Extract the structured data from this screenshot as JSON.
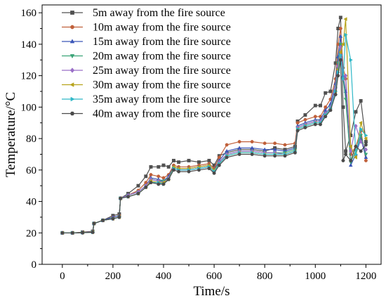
{
  "chart_data": {
    "type": "line",
    "xlabel": "Time/s",
    "ylabel": "Temperature/°C",
    "xlim": [
      -80,
      1260
    ],
    "ylim": [
      0,
      165
    ],
    "xticks": [
      0,
      200,
      400,
      600,
      800,
      1000,
      1200
    ],
    "yticks": [
      0,
      20,
      40,
      60,
      80,
      100,
      120,
      140,
      160
    ],
    "grid": false,
    "legend_position": "top-left",
    "series": [
      {
        "name": "5m away from the fire source",
        "color": "#505050",
        "marker": "square",
        "x": [
          0,
          40,
          80,
          120,
          125,
          160,
          200,
          225,
          230,
          260,
          300,
          330,
          350,
          380,
          400,
          420,
          440,
          460,
          500,
          540,
          580,
          600,
          620,
          650,
          700,
          750,
          800,
          840,
          880,
          920,
          930,
          960,
          1000,
          1020,
          1040,
          1060,
          1080,
          1090,
          1100,
          1110,
          1120,
          1140,
          1160,
          1180,
          1200
        ],
        "y": [
          20,
          20,
          20.5,
          21,
          26,
          28,
          31,
          32,
          42,
          45,
          50,
          56,
          62,
          62,
          63,
          62,
          66,
          65,
          66,
          65,
          66,
          63,
          69,
          71,
          73,
          73,
          72,
          74,
          73,
          75,
          91,
          95,
          101,
          101,
          109,
          110,
          128,
          150,
          157,
          100,
          72,
          82,
          97,
          104,
          78
        ]
      },
      {
        "name": "10m away from the fire source",
        "color": "#c0603a",
        "marker": "circle",
        "x": [
          0,
          40,
          80,
          120,
          125,
          160,
          200,
          225,
          230,
          260,
          300,
          330,
          350,
          380,
          400,
          420,
          440,
          460,
          500,
          540,
          580,
          600,
          620,
          650,
          700,
          750,
          800,
          840,
          880,
          920,
          930,
          960,
          1000,
          1020,
          1040,
          1060,
          1080,
          1090,
          1100,
          1110,
          1120,
          1140,
          1160,
          1180,
          1200
        ],
        "y": [
          20,
          20,
          20.3,
          20.8,
          26,
          28,
          30,
          31,
          42,
          44,
          47,
          52,
          57,
          56,
          55,
          57,
          63,
          62,
          62,
          63,
          64,
          61,
          68,
          76,
          78,
          78,
          77,
          77,
          76,
          77,
          90,
          92,
          94,
          94,
          100,
          105,
          118,
          140,
          150,
          125,
          118,
          70,
          75,
          85,
          66
        ]
      },
      {
        "name": "15m away from the fire source",
        "color": "#3a56b8",
        "marker": "triangle-up",
        "x": [
          0,
          40,
          80,
          120,
          125,
          160,
          200,
          225,
          230,
          260,
          300,
          330,
          350,
          380,
          400,
          420,
          440,
          460,
          500,
          540,
          580,
          600,
          620,
          650,
          700,
          750,
          800,
          840,
          880,
          920,
          930,
          960,
          1000,
          1020,
          1040,
          1060,
          1080,
          1090,
          1100,
          1110,
          1120,
          1140,
          1160,
          1180,
          1200
        ],
        "y": [
          20,
          20,
          20.2,
          20.6,
          26,
          28,
          30,
          31,
          42,
          44,
          46,
          50,
          55,
          54,
          53,
          56,
          62,
          61,
          61,
          62,
          63,
          60,
          66,
          72,
          74,
          74,
          73,
          73,
          72,
          74,
          88,
          90,
          92,
          92,
          98,
          102,
          115,
          132,
          145,
          120,
          110,
          63,
          70,
          80,
          68
        ]
      },
      {
        "name": "20m away from the fire source",
        "color": "#3aa377",
        "marker": "triangle-down",
        "x": [
          0,
          40,
          80,
          120,
          125,
          160,
          200,
          225,
          230,
          260,
          300,
          330,
          350,
          380,
          400,
          420,
          440,
          460,
          500,
          540,
          580,
          600,
          620,
          650,
          700,
          750,
          800,
          840,
          880,
          920,
          930,
          960,
          1000,
          1020,
          1040,
          1060,
          1080,
          1090,
          1100,
          1110,
          1120,
          1140,
          1160,
          1180,
          1200
        ],
        "y": [
          20,
          20,
          20.1,
          20.5,
          26,
          28,
          29,
          30,
          42,
          44,
          46,
          50,
          54,
          53,
          53,
          55,
          61,
          60,
          60,
          61,
          62,
          59,
          65,
          70,
          72,
          72,
          71,
          71,
          71,
          73,
          87,
          89,
          91,
          91,
          96,
          100,
          112,
          128,
          140,
          118,
          105,
          65,
          72,
          82,
          70
        ]
      },
      {
        "name": "25m away from the fire source",
        "color": "#9a6fc8",
        "marker": "diamond",
        "x": [
          0,
          40,
          80,
          120,
          125,
          160,
          200,
          225,
          230,
          260,
          300,
          330,
          350,
          380,
          400,
          420,
          440,
          460,
          500,
          540,
          580,
          600,
          620,
          650,
          700,
          750,
          800,
          840,
          880,
          920,
          930,
          960,
          1000,
          1020,
          1040,
          1060,
          1080,
          1090,
          1100,
          1110,
          1120,
          1140,
          1160,
          1180,
          1200
        ],
        "y": [
          20,
          20,
          20.1,
          20.5,
          26,
          28,
          29,
          30,
          42,
          44,
          46,
          50,
          54,
          53,
          52,
          55,
          61,
          60,
          60,
          61,
          62,
          59,
          65,
          70,
          72,
          72,
          71,
          71,
          70,
          72,
          87,
          89,
          91,
          91,
          96,
          100,
          112,
          126,
          138,
          118,
          120,
          72,
          88,
          78,
          73
        ]
      },
      {
        "name": "30m away from the fire source",
        "color": "#b7a31b",
        "marker": "triangle-left",
        "x": [
          0,
          40,
          80,
          120,
          125,
          160,
          200,
          225,
          230,
          260,
          300,
          330,
          350,
          380,
          400,
          420,
          440,
          460,
          500,
          540,
          580,
          600,
          620,
          650,
          700,
          750,
          800,
          840,
          880,
          920,
          930,
          960,
          1000,
          1020,
          1040,
          1060,
          1080,
          1090,
          1100,
          1110,
          1120,
          1140,
          1160,
          1180,
          1200
        ],
        "y": [
          20,
          20,
          20.1,
          20.4,
          26,
          28,
          29,
          30,
          42,
          43,
          45,
          49,
          53,
          52,
          52,
          54,
          62,
          61,
          61,
          62,
          63,
          60,
          64,
          69,
          71,
          71,
          70,
          70,
          70,
          72,
          86,
          88,
          90,
          90,
          95,
          99,
          110,
          124,
          135,
          140,
          156,
          75,
          68,
          90,
          80
        ]
      },
      {
        "name": "35m away from the fire source",
        "color": "#2fb8c8",
        "marker": "triangle-right",
        "x": [
          0,
          40,
          80,
          120,
          125,
          160,
          200,
          225,
          230,
          260,
          300,
          330,
          350,
          380,
          400,
          420,
          440,
          460,
          500,
          540,
          580,
          600,
          620,
          650,
          700,
          750,
          800,
          840,
          880,
          920,
          930,
          960,
          1000,
          1020,
          1040,
          1060,
          1080,
          1090,
          1100,
          1110,
          1120,
          1140,
          1160,
          1180,
          1200
        ],
        "y": [
          20,
          20,
          20.1,
          20.4,
          26,
          28,
          29,
          30,
          42,
          43,
          45,
          49,
          52,
          52,
          51,
          54,
          61,
          60,
          60,
          61,
          62,
          59,
          64,
          69,
          71,
          71,
          70,
          70,
          70,
          72,
          86,
          88,
          90,
          90,
          95,
          99,
          110,
          122,
          133,
          118,
          146,
          130,
          70,
          86,
          82
        ]
      },
      {
        "name": "40m away from the fire source",
        "color": "#4a4a4a",
        "marker": "hexagon",
        "x": [
          0,
          40,
          80,
          120,
          125,
          160,
          200,
          225,
          230,
          260,
          300,
          330,
          350,
          380,
          400,
          420,
          440,
          460,
          500,
          540,
          580,
          600,
          620,
          650,
          700,
          750,
          800,
          840,
          880,
          920,
          930,
          960,
          1000,
          1020,
          1040,
          1060,
          1080,
          1090,
          1100,
          1110,
          1120,
          1140,
          1160,
          1180,
          1200
        ],
        "y": [
          20,
          20,
          20.1,
          20.4,
          26,
          28,
          29,
          30,
          42,
          43,
          45,
          49,
          52,
          51,
          51,
          54,
          60,
          59,
          59,
          60,
          61,
          58,
          63,
          68,
          70,
          70,
          69,
          69,
          69,
          71,
          85,
          87,
          89,
          89,
          94,
          98,
          108,
          120,
          130,
          66,
          70,
          66,
          75,
          72,
          76
        ]
      }
    ]
  }
}
